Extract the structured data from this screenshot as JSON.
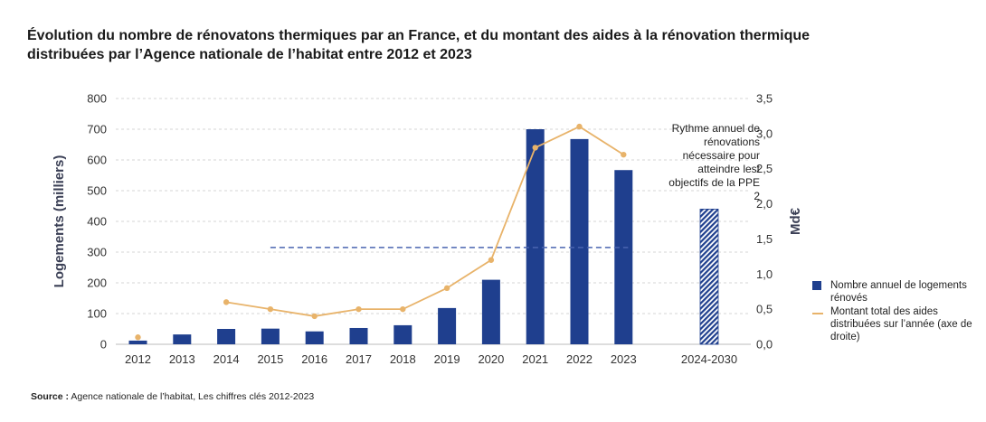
{
  "title_line1": "Évolution du nombre de rénovatons thermiques par an France, et du montant des aides à la rénovation thermique",
  "title_line2": "distribuées par l’Agence nationale de l’habitat entre 2012 et 2023",
  "source_label": "Source :",
  "source_text": " Agence nationale de l’habitat, Les chiffres clés 2012-2023",
  "chart_data": {
    "type": "bar",
    "categories": [
      "2012",
      "2013",
      "2014",
      "2015",
      "2016",
      "2017",
      "2018",
      "2019",
      "2020",
      "2021",
      "2022",
      "2023",
      "2024-2030"
    ],
    "ylabel_left": "Logements (milliers)",
    "ylabel_right": "Md€",
    "ylim_left": [
      0,
      800
    ],
    "ylim_right": [
      0,
      3.5
    ],
    "yticks_left": [
      "0",
      "100",
      "200",
      "300",
      "400",
      "500",
      "600",
      "700",
      "800"
    ],
    "yticks_right": [
      "0,0",
      "0,5",
      "1,0",
      "1,5",
      "2,0",
      "2,5",
      "3,0",
      "3,5"
    ],
    "grid": true,
    "series": [
      {
        "name": "Nombre annuel de logements rénovés",
        "kind": "bar",
        "axis": "left",
        "color": "#1f3f8e",
        "values": [
          12,
          32,
          50,
          51,
          42,
          53,
          62,
          118,
          210,
          700,
          668,
          567,
          null
        ]
      },
      {
        "name": "Montant total des aides distribuées sur l’année (axe de droite)",
        "kind": "line",
        "axis": "right",
        "color": "#e8b36a",
        "values": [
          0.1,
          null,
          0.6,
          0.5,
          0.4,
          0.5,
          0.5,
          0.8,
          1.2,
          2.8,
          3.1,
          2.7,
          null
        ]
      }
    ],
    "target_bar": {
      "category": "2024-2030",
      "value": 440,
      "pattern": "hatched"
    },
    "reference_line": {
      "value": 315,
      "from": "2015",
      "to": "2023",
      "style": "dashed",
      "color": "#4a66b0"
    },
    "annotation": "Rythme annuel de rénovations nécessaire pour atteindre lest objectifs de la PPE 2",
    "legend": [
      {
        "label": "Nombre annuel de logements rénovés",
        "swatch": "bar"
      },
      {
        "label": "Montant total des aides distribuées sur l’année (axe de droite)",
        "swatch": "line"
      }
    ],
    "legend_position": "right"
  }
}
